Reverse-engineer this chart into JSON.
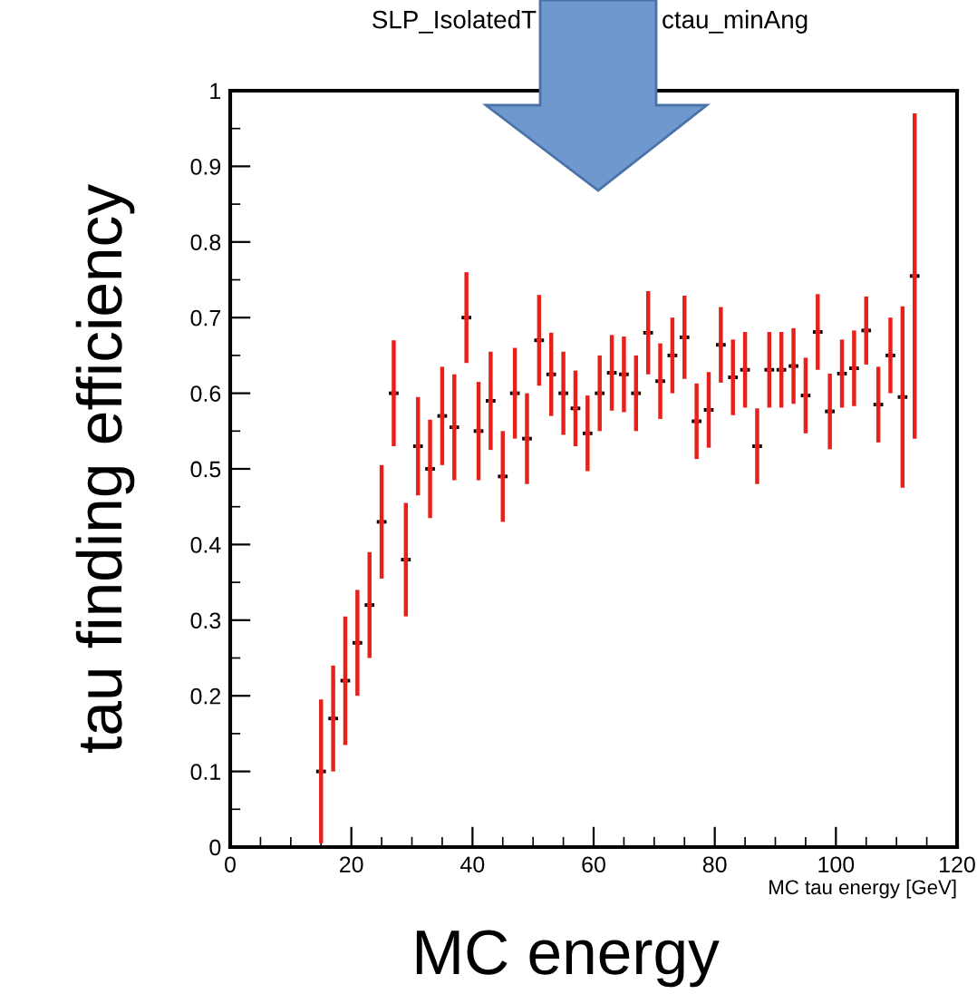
{
  "chart_data": {
    "type": "scatter",
    "title": "SLP_IsolatedT",
    "annotations": [
      "ctau_minAng",
      "MC energy"
    ],
    "xlabel": "MC tau energy [GeV]",
    "ylabel": "tau finding efficiency",
    "x": [
      15,
      17,
      19,
      21,
      23,
      25,
      27,
      29,
      31,
      33,
      35,
      37,
      39,
      41,
      43,
      45,
      47,
      49,
      51,
      53,
      55,
      57,
      59,
      61,
      63,
      65,
      67,
      69,
      71,
      73,
      75,
      77,
      79,
      81,
      83,
      85,
      87,
      89,
      91,
      93,
      95,
      97,
      99,
      101,
      103,
      105,
      107,
      109,
      111,
      113
    ],
    "series": [
      {
        "color": "#e8201c",
        "values": [
          0.1,
          0.17,
          0.22,
          0.27,
          0.32,
          0.43,
          0.6,
          0.38,
          0.53,
          0.5,
          0.57,
          0.555,
          0.7,
          0.55,
          0.59,
          0.49,
          0.6,
          0.54,
          0.67,
          0.625,
          0.6,
          0.58,
          0.547,
          0.6,
          0.627,
          0.625,
          0.6,
          0.68,
          0.616,
          0.65,
          0.674,
          0.563,
          0.578,
          0.664,
          0.621,
          0.631,
          0.53,
          0.631,
          0.631,
          0.636,
          0.597,
          0.681,
          0.576,
          0.626,
          0.633,
          0.683,
          0.585,
          0.65,
          0.595,
          0.755
        ],
        "errors": [
          0.095,
          0.07,
          0.085,
          0.07,
          0.07,
          0.075,
          0.07,
          0.075,
          0.065,
          0.065,
          0.065,
          0.07,
          0.06,
          0.065,
          0.065,
          0.06,
          0.06,
          0.06,
          0.06,
          0.055,
          0.055,
          0.05,
          0.05,
          0.05,
          0.05,
          0.05,
          0.05,
          0.055,
          0.05,
          0.05,
          0.055,
          0.05,
          0.05,
          0.05,
          0.05,
          0.05,
          0.05,
          0.05,
          0.05,
          0.05,
          0.05,
          0.05,
          0.05,
          0.045,
          0.05,
          0.045,
          0.05,
          0.05,
          0.12,
          0.215
        ],
        "xerrors": [
          0.8,
          0.8,
          0.8,
          0.8,
          0.8,
          0.8,
          0.8,
          0.8,
          0.8,
          0.8,
          0.8,
          0.8,
          0.8,
          0.8,
          0.8,
          0.8,
          0.8,
          0.8,
          0.8,
          0.8,
          0.8,
          0.8,
          0.8,
          0.8,
          0.8,
          0.8,
          0.8,
          0.8,
          0.8,
          0.8,
          0.8,
          0.8,
          0.8,
          0.8,
          0.8,
          0.8,
          0.8,
          0.8,
          0.8,
          0.8,
          0.8,
          0.8,
          0.8,
          0.8,
          0.8,
          0.8,
          0.8,
          0.8,
          0.8,
          0.8
        ]
      }
    ],
    "marker": "circle",
    "xlim": [
      0,
      120
    ],
    "xticks": [
      0,
      20,
      40,
      60,
      80,
      100,
      120
    ],
    "ylim": [
      0,
      1
    ],
    "yticks": [
      0,
      0.1,
      0.2,
      0.3,
      0.4,
      0.5,
      0.6,
      0.7,
      0.8,
      0.9,
      1
    ],
    "grid": false,
    "legend": false
  }
}
